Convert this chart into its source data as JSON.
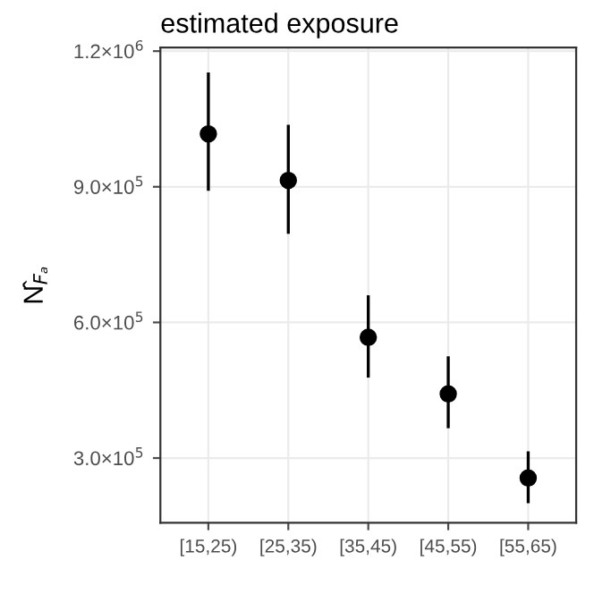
{
  "chart_data": {
    "type": "scatter",
    "title": "estimated exposure",
    "ylabel": "N̂$_{Fₐ}$",
    "categories": [
      "[15,25)",
      "[25,35)",
      "[35,45)",
      "[45,55)",
      "[55,65)"
    ],
    "series": [
      {
        "color": "#000000",
        "values": [
          1017000,
          914000,
          567000,
          442000,
          256000
        ],
        "errors": [
          [
            891000,
            1153000
          ],
          [
            796000,
            1037000
          ],
          [
            478000,
            660000
          ],
          [
            366000,
            525000
          ],
          [
            200000,
            315000
          ]
        ]
      }
    ],
    "ylim": [
      157000,
      1208000
    ],
    "yticks": [
      {
        "value": 300000,
        "label": "3.0×10$^{5}$"
      },
      {
        "value": 600000,
        "label": "6.0×10$^{5}$"
      },
      {
        "value": 900000,
        "label": "9.0×10$^{5}$"
      },
      {
        "value": 1200000,
        "label": "1.2×10$^{6}$"
      }
    ],
    "grid": true,
    "marker": "circle"
  }
}
